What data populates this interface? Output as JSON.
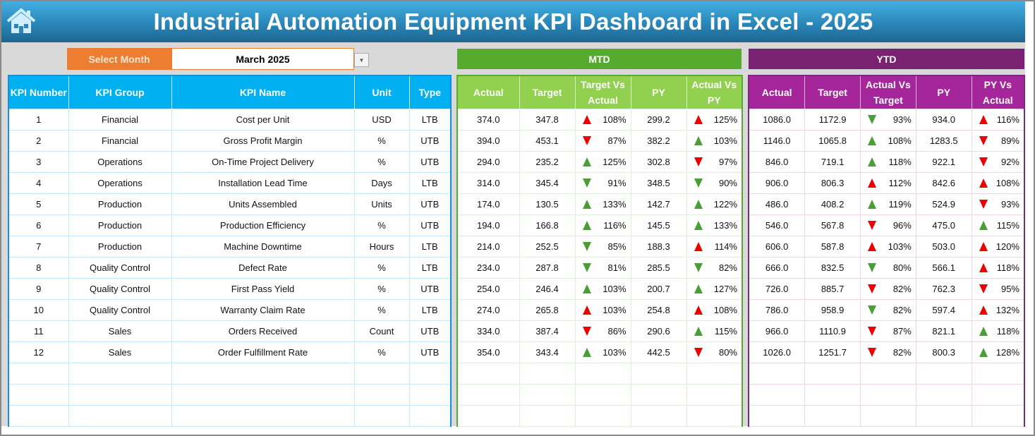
{
  "title": "Industrial Automation Equipment KPI Dashboard in Excel - 2025",
  "icons": {
    "home": "home-icon",
    "dropdown": "chevron-down-icon"
  },
  "colors": {
    "red_arrow": "#e00000",
    "green_arrow": "#4a9e36",
    "mtd": "#55ab2e",
    "ytd": "#7b2172",
    "header": "#00b0f0",
    "select": "#ed7d31"
  },
  "selector": {
    "label": "Select Month",
    "value": "March 2025"
  },
  "mtd_label": "MTD",
  "ytd_label": "YTD",
  "left_headers": [
    "KPI Number",
    "KPI Group",
    "KPI Name",
    "Unit",
    "Type"
  ],
  "mtd_headers": [
    "Actual",
    "Target",
    "Target Vs Actual",
    "PY",
    "Actual Vs PY"
  ],
  "ytd_headers": [
    "Actual",
    "Target",
    "Actual Vs Target",
    "PY",
    "PY Vs Actual"
  ],
  "rows": [
    {
      "num": "1",
      "group": "Financial",
      "name": "Cost per Unit",
      "unit": "USD",
      "type": "LTB",
      "mtd": [
        "374.0",
        "347.8",
        {
          "v": "108%",
          "dir": "up",
          "color": "red"
        },
        "299.2",
        {
          "v": "125%",
          "dir": "up",
          "color": "red"
        }
      ],
      "ytd": [
        "1086.0",
        "1172.9",
        {
          "v": "93%",
          "dir": "down",
          "color": "green"
        },
        "934.0",
        {
          "v": "116%",
          "dir": "up",
          "color": "red"
        }
      ]
    },
    {
      "num": "2",
      "group": "Financial",
      "name": "Gross Profit Margin",
      "unit": "%",
      "type": "UTB",
      "mtd": [
        "394.0",
        "453.1",
        {
          "v": "87%",
          "dir": "down",
          "color": "red"
        },
        "382.2",
        {
          "v": "103%",
          "dir": "up",
          "color": "green"
        }
      ],
      "ytd": [
        "1146.0",
        "1065.8",
        {
          "v": "108%",
          "dir": "up",
          "color": "green"
        },
        "1283.5",
        {
          "v": "89%",
          "dir": "down",
          "color": "red"
        }
      ]
    },
    {
      "num": "3",
      "group": "Operations",
      "name": "On-Time Project Delivery",
      "unit": "%",
      "type": "UTB",
      "mtd": [
        "294.0",
        "235.2",
        {
          "v": "125%",
          "dir": "up",
          "color": "green"
        },
        "302.8",
        {
          "v": "97%",
          "dir": "down",
          "color": "red"
        }
      ],
      "ytd": [
        "846.0",
        "719.1",
        {
          "v": "118%",
          "dir": "up",
          "color": "green"
        },
        "922.1",
        {
          "v": "92%",
          "dir": "down",
          "color": "red"
        }
      ]
    },
    {
      "num": "4",
      "group": "Operations",
      "name": "Installation Lead Time",
      "unit": "Days",
      "type": "LTB",
      "mtd": [
        "314.0",
        "345.4",
        {
          "v": "91%",
          "dir": "down",
          "color": "green"
        },
        "348.5",
        {
          "v": "90%",
          "dir": "down",
          "color": "green"
        }
      ],
      "ytd": [
        "906.0",
        "806.3",
        {
          "v": "112%",
          "dir": "up",
          "color": "red"
        },
        "842.6",
        {
          "v": "108%",
          "dir": "up",
          "color": "red"
        }
      ]
    },
    {
      "num": "5",
      "group": "Production",
      "name": "Units Assembled",
      "unit": "Units",
      "type": "UTB",
      "mtd": [
        "174.0",
        "130.5",
        {
          "v": "133%",
          "dir": "up",
          "color": "green"
        },
        "142.7",
        {
          "v": "122%",
          "dir": "up",
          "color": "green"
        }
      ],
      "ytd": [
        "486.0",
        "408.2",
        {
          "v": "119%",
          "dir": "up",
          "color": "green"
        },
        "524.9",
        {
          "v": "93%",
          "dir": "down",
          "color": "red"
        }
      ]
    },
    {
      "num": "6",
      "group": "Production",
      "name": "Production Efficiency",
      "unit": "%",
      "type": "UTB",
      "mtd": [
        "194.0",
        "166.8",
        {
          "v": "116%",
          "dir": "up",
          "color": "green"
        },
        "145.5",
        {
          "v": "133%",
          "dir": "up",
          "color": "green"
        }
      ],
      "ytd": [
        "546.0",
        "567.8",
        {
          "v": "96%",
          "dir": "down",
          "color": "red"
        },
        "475.0",
        {
          "v": "115%",
          "dir": "up",
          "color": "green"
        }
      ]
    },
    {
      "num": "7",
      "group": "Production",
      "name": "Machine Downtime",
      "unit": "Hours",
      "type": "LTB",
      "mtd": [
        "214.0",
        "252.5",
        {
          "v": "85%",
          "dir": "down",
          "color": "green"
        },
        "188.3",
        {
          "v": "114%",
          "dir": "up",
          "color": "red"
        }
      ],
      "ytd": [
        "606.0",
        "587.8",
        {
          "v": "103%",
          "dir": "up",
          "color": "red"
        },
        "503.0",
        {
          "v": "120%",
          "dir": "up",
          "color": "red"
        }
      ]
    },
    {
      "num": "8",
      "group": "Quality Control",
      "name": "Defect Rate",
      "unit": "%",
      "type": "LTB",
      "mtd": [
        "234.0",
        "287.8",
        {
          "v": "81%",
          "dir": "down",
          "color": "green"
        },
        "285.5",
        {
          "v": "82%",
          "dir": "down",
          "color": "green"
        }
      ],
      "ytd": [
        "666.0",
        "832.5",
        {
          "v": "80%",
          "dir": "down",
          "color": "green"
        },
        "566.1",
        {
          "v": "118%",
          "dir": "up",
          "color": "red"
        }
      ]
    },
    {
      "num": "9",
      "group": "Quality Control",
      "name": "First Pass Yield",
      "unit": "%",
      "type": "UTB",
      "mtd": [
        "254.0",
        "246.4",
        {
          "v": "103%",
          "dir": "up",
          "color": "green"
        },
        "200.7",
        {
          "v": "127%",
          "dir": "up",
          "color": "green"
        }
      ],
      "ytd": [
        "726.0",
        "885.7",
        {
          "v": "82%",
          "dir": "down",
          "color": "red"
        },
        "762.3",
        {
          "v": "95%",
          "dir": "down",
          "color": "red"
        }
      ]
    },
    {
      "num": "10",
      "group": "Quality Control",
      "name": "Warranty Claim Rate",
      "unit": "%",
      "type": "LTB",
      "mtd": [
        "274.0",
        "265.8",
        {
          "v": "103%",
          "dir": "up",
          "color": "red"
        },
        "254.8",
        {
          "v": "108%",
          "dir": "up",
          "color": "red"
        }
      ],
      "ytd": [
        "786.0",
        "958.9",
        {
          "v": "82%",
          "dir": "down",
          "color": "green"
        },
        "597.4",
        {
          "v": "132%",
          "dir": "up",
          "color": "red"
        }
      ]
    },
    {
      "num": "11",
      "group": "Sales",
      "name": "Orders Received",
      "unit": "Count",
      "type": "UTB",
      "mtd": [
        "334.0",
        "387.4",
        {
          "v": "86%",
          "dir": "down",
          "color": "red"
        },
        "290.6",
        {
          "v": "115%",
          "dir": "up",
          "color": "green"
        }
      ],
      "ytd": [
        "966.0",
        "1110.9",
        {
          "v": "87%",
          "dir": "down",
          "color": "red"
        },
        "821.1",
        {
          "v": "118%",
          "dir": "up",
          "color": "green"
        }
      ]
    },
    {
      "num": "12",
      "group": "Sales",
      "name": "Order Fulfillment Rate",
      "unit": "%",
      "type": "UTB",
      "mtd": [
        "354.0",
        "343.4",
        {
          "v": "103%",
          "dir": "up",
          "color": "green"
        },
        "442.5",
        {
          "v": "80%",
          "dir": "down",
          "color": "red"
        }
      ],
      "ytd": [
        "1026.0",
        "1251.7",
        {
          "v": "82%",
          "dir": "down",
          "color": "red"
        },
        "800.3",
        {
          "v": "128%",
          "dir": "up",
          "color": "green"
        }
      ]
    }
  ]
}
